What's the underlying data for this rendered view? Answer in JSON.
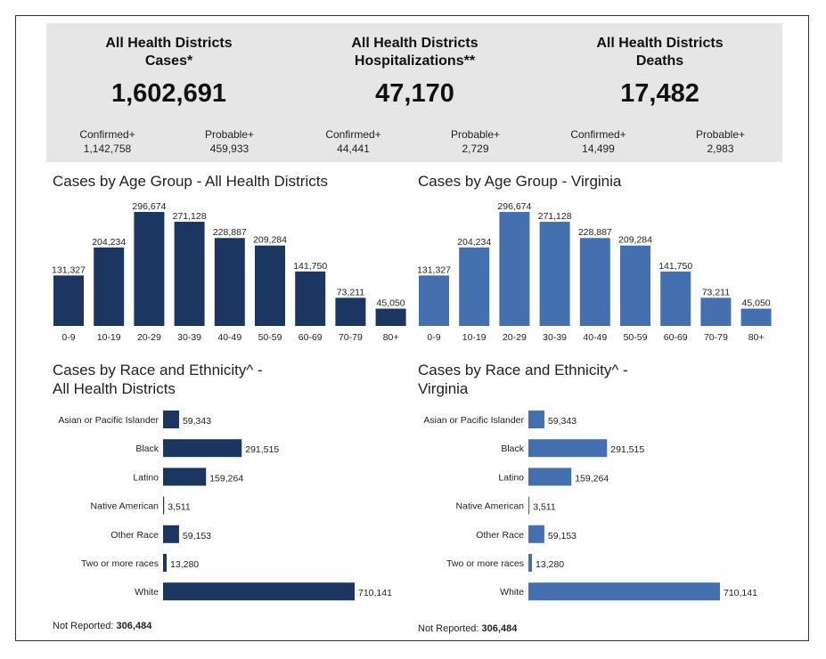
{
  "summary": [
    {
      "title_line1": "All Health Districts",
      "title_line2": "Cases*",
      "value": "1,602,691",
      "confirmed_label": "Confirmed+",
      "confirmed_value": "1,142,758",
      "probable_label": "Probable+",
      "probable_value": "459,933"
    },
    {
      "title_line1": "All Health Districts",
      "title_line2": "Hospitalizations**",
      "value": "47,170",
      "confirmed_label": "Confirmed+",
      "confirmed_value": "44,441",
      "probable_label": "Probable+",
      "probable_value": "2,729"
    },
    {
      "title_line1": "All Health Districts",
      "title_line2": "Deaths",
      "value": "17,482",
      "confirmed_label": "Confirmed+",
      "confirmed_value": "14,499",
      "probable_label": "Probable+",
      "probable_value": "2,983"
    }
  ],
  "colors": {
    "dark_bar": "#1b3660",
    "light_bar": "#4470b0",
    "summary_bg": "#e6e6e6"
  },
  "chart_data": [
    {
      "type": "bar",
      "title": "Cases by Age Group - All Health Districts",
      "categories": [
        "0-9",
        "10-19",
        "20-29",
        "30-39",
        "40-49",
        "50-59",
        "60-69",
        "70-79",
        "80+"
      ],
      "values": [
        131327,
        204234,
        296674,
        271128,
        228887,
        209284,
        141750,
        73211,
        45050
      ],
      "value_labels": [
        "131,327",
        "204,234",
        "296,674",
        "271,128",
        "228,887",
        "209,284",
        "141,750",
        "73,211",
        "45,050"
      ]
    },
    {
      "type": "bar",
      "title": "Cases by Age Group - Virginia",
      "categories": [
        "0-9",
        "10-19",
        "20-29",
        "30-39",
        "40-49",
        "50-59",
        "60-69",
        "70-79",
        "80+"
      ],
      "values": [
        131327,
        204234,
        296674,
        271128,
        228887,
        209284,
        141750,
        73211,
        45050
      ],
      "value_labels": [
        "131,327",
        "204,234",
        "296,674",
        "271,128",
        "228,887",
        "209,284",
        "141,750",
        "73,211",
        "45,050"
      ]
    },
    {
      "type": "bar",
      "orientation": "horizontal",
      "title_line1": "Cases by Race and Ethnicity^ -",
      "title_line2": "All Health Districts",
      "categories": [
        "Asian or Pacific Islander",
        "Black",
        "Latino",
        "Native American",
        "Other Race",
        "Two or more races",
        "White"
      ],
      "values": [
        59343,
        291515,
        159264,
        3511,
        59153,
        13280,
        710141
      ],
      "value_labels": [
        "59,343",
        "291,515",
        "159,264",
        "3,511",
        "59,153",
        "13,280",
        "710,141"
      ],
      "not_reported_label": "Not Reported:",
      "not_reported_value": "306,484"
    },
    {
      "type": "bar",
      "orientation": "horizontal",
      "title_line1": "Cases by Race and Ethnicity^ -",
      "title_line2": "Virginia",
      "categories": [
        "Asian or Pacific Islander",
        "Black",
        "Latino",
        "Native American",
        "Other Race",
        "Two or more races",
        "White"
      ],
      "values": [
        59343,
        291515,
        159264,
        3511,
        59153,
        13280,
        710141
      ],
      "value_labels": [
        "59,343",
        "291,515",
        "159,264",
        "3,511",
        "59,153",
        "13,280",
        "710,141"
      ],
      "not_reported_label": "Not Reported:",
      "not_reported_value": "306,484"
    }
  ]
}
